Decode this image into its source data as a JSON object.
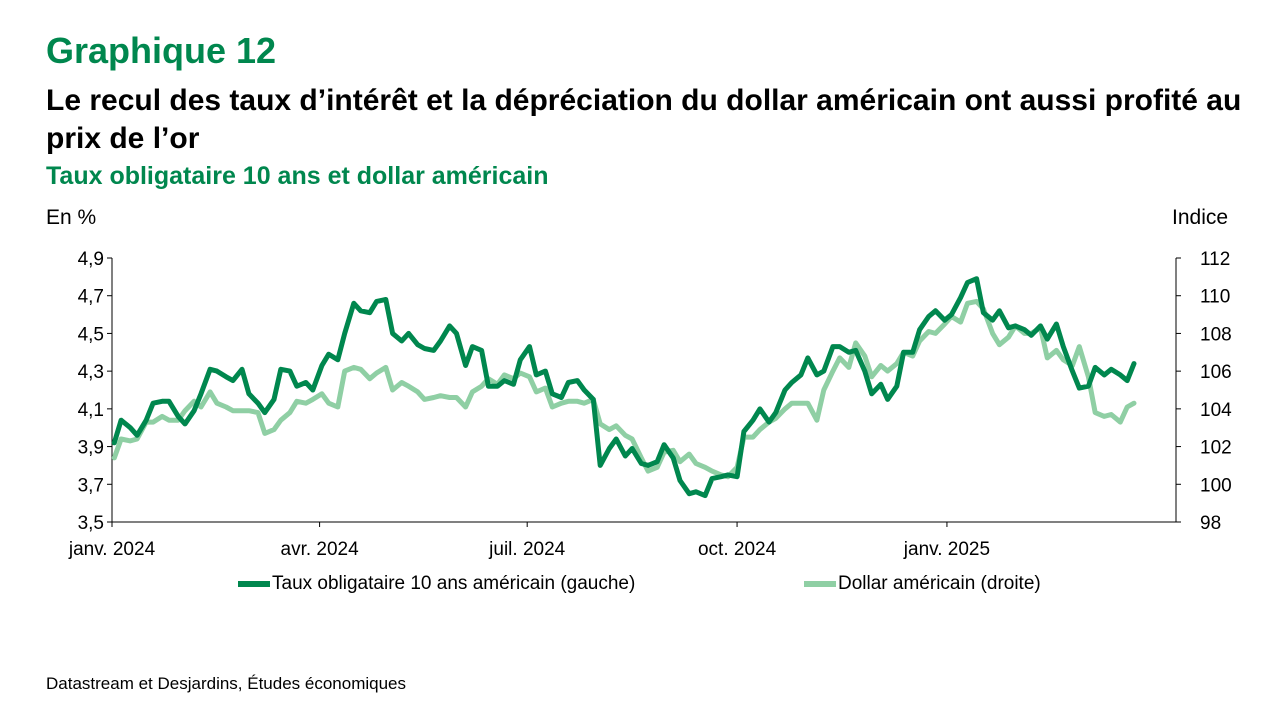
{
  "header": {
    "kicker": "Graphique 12",
    "title": "Le recul des taux d’intérêt et la dépréciation du dollar américain ont aussi profité au prix de l’or",
    "subtitle": "Taux obligataire 10 ans et dollar américain"
  },
  "footer": {
    "source": "Datastream et Desjardins, Études économiques"
  },
  "colors": {
    "accent": "#00874E",
    "series_bond": "#00874E",
    "series_dollar": "#8FCFA4"
  },
  "chart_data": {
    "type": "line",
    "title": "Taux obligataire 10 ans et dollar américain",
    "y_left": {
      "label": "En %",
      "range": [
        3.5,
        4.9
      ],
      "ticks": [
        "4,9",
        "4,7",
        "4,5",
        "4,3",
        "4,1",
        "3,9",
        "3,7",
        "3,5"
      ],
      "tick_values": [
        4.9,
        4.7,
        4.5,
        4.3,
        4.1,
        3.9,
        3.7,
        3.5
      ]
    },
    "y_right": {
      "label": "Indice",
      "range": [
        98,
        112
      ],
      "ticks": [
        "112",
        "110",
        "108",
        "106",
        "104",
        "102",
        "100",
        "98"
      ],
      "tick_values": [
        112,
        110,
        108,
        106,
        104,
        102,
        100,
        98
      ]
    },
    "x_axis": {
      "range": [
        "2024-01-01",
        "2025-03-24"
      ],
      "ticks": [
        {
          "date": "2024-01-01",
          "label": "janv. 2024"
        },
        {
          "date": "2024-04-01",
          "label": "avr. 2024"
        },
        {
          "date": "2024-07-01",
          "label": "juil. 2024"
        },
        {
          "date": "2024-10-01",
          "label": "oct. 2024"
        },
        {
          "date": "2025-01-01",
          "label": "janv. 2025"
        }
      ]
    },
    "grid": false,
    "legend_position": "bottom",
    "series": [
      {
        "name": "Taux obligataire 10 ans américain (gauche)",
        "axis": "left",
        "points": [
          [
            "2024-01-02",
            3.92
          ],
          [
            "2024-01-05",
            4.04
          ],
          [
            "2024-01-09",
            4.0
          ],
          [
            "2024-01-12",
            3.96
          ],
          [
            "2024-01-16",
            4.04
          ],
          [
            "2024-01-19",
            4.13
          ],
          [
            "2024-01-23",
            4.14
          ],
          [
            "2024-01-26",
            4.14
          ],
          [
            "2024-01-30",
            4.06
          ],
          [
            "2024-02-02",
            4.02
          ],
          [
            "2024-02-06",
            4.09
          ],
          [
            "2024-02-09",
            4.18
          ],
          [
            "2024-02-13",
            4.31
          ],
          [
            "2024-02-16",
            4.3
          ],
          [
            "2024-02-20",
            4.27
          ],
          [
            "2024-02-23",
            4.25
          ],
          [
            "2024-02-27",
            4.31
          ],
          [
            "2024-03-01",
            4.18
          ],
          [
            "2024-03-05",
            4.13
          ],
          [
            "2024-03-08",
            4.08
          ],
          [
            "2024-03-12",
            4.15
          ],
          [
            "2024-03-15",
            4.31
          ],
          [
            "2024-03-19",
            4.3
          ],
          [
            "2024-03-22",
            4.22
          ],
          [
            "2024-03-26",
            4.24
          ],
          [
            "2024-03-29",
            4.2
          ],
          [
            "2024-04-02",
            4.33
          ],
          [
            "2024-04-05",
            4.39
          ],
          [
            "2024-04-09",
            4.36
          ],
          [
            "2024-04-12",
            4.5
          ],
          [
            "2024-04-16",
            4.66
          ],
          [
            "2024-04-19",
            4.62
          ],
          [
            "2024-04-23",
            4.61
          ],
          [
            "2024-04-26",
            4.67
          ],
          [
            "2024-04-30",
            4.68
          ],
          [
            "2024-05-03",
            4.5
          ],
          [
            "2024-05-07",
            4.46
          ],
          [
            "2024-05-10",
            4.5
          ],
          [
            "2024-05-14",
            4.44
          ],
          [
            "2024-05-17",
            4.42
          ],
          [
            "2024-05-21",
            4.41
          ],
          [
            "2024-05-24",
            4.46
          ],
          [
            "2024-05-28",
            4.54
          ],
          [
            "2024-05-31",
            4.5
          ],
          [
            "2024-06-04",
            4.33
          ],
          [
            "2024-06-07",
            4.43
          ],
          [
            "2024-06-11",
            4.41
          ],
          [
            "2024-06-14",
            4.22
          ],
          [
            "2024-06-18",
            4.22
          ],
          [
            "2024-06-21",
            4.25
          ],
          [
            "2024-06-25",
            4.23
          ],
          [
            "2024-06-28",
            4.36
          ],
          [
            "2024-07-02",
            4.43
          ],
          [
            "2024-07-05",
            4.28
          ],
          [
            "2024-07-09",
            4.3
          ],
          [
            "2024-07-12",
            4.18
          ],
          [
            "2024-07-16",
            4.16
          ],
          [
            "2024-07-19",
            4.24
          ],
          [
            "2024-07-23",
            4.25
          ],
          [
            "2024-07-26",
            4.2
          ],
          [
            "2024-07-30",
            4.15
          ],
          [
            "2024-08-02",
            3.8
          ],
          [
            "2024-08-06",
            3.89
          ],
          [
            "2024-08-09",
            3.94
          ],
          [
            "2024-08-13",
            3.85
          ],
          [
            "2024-08-16",
            3.89
          ],
          [
            "2024-08-20",
            3.81
          ],
          [
            "2024-08-23",
            3.8
          ],
          [
            "2024-08-27",
            3.82
          ],
          [
            "2024-08-30",
            3.91
          ],
          [
            "2024-09-03",
            3.84
          ],
          [
            "2024-09-06",
            3.72
          ],
          [
            "2024-09-10",
            3.65
          ],
          [
            "2024-09-13",
            3.66
          ],
          [
            "2024-09-17",
            3.64
          ],
          [
            "2024-09-20",
            3.73
          ],
          [
            "2024-09-24",
            3.74
          ],
          [
            "2024-09-27",
            3.75
          ],
          [
            "2024-10-01",
            3.74
          ],
          [
            "2024-10-04",
            3.98
          ],
          [
            "2024-10-08",
            4.04
          ],
          [
            "2024-10-11",
            4.1
          ],
          [
            "2024-10-15",
            4.03
          ],
          [
            "2024-10-18",
            4.08
          ],
          [
            "2024-10-22",
            4.2
          ],
          [
            "2024-10-25",
            4.24
          ],
          [
            "2024-10-29",
            4.28
          ],
          [
            "2024-11-01",
            4.37
          ],
          [
            "2024-11-05",
            4.28
          ],
          [
            "2024-11-08",
            4.3
          ],
          [
            "2024-11-12",
            4.43
          ],
          [
            "2024-11-15",
            4.43
          ],
          [
            "2024-11-19",
            4.4
          ],
          [
            "2024-11-22",
            4.41
          ],
          [
            "2024-11-26",
            4.3
          ],
          [
            "2024-11-29",
            4.18
          ],
          [
            "2024-12-03",
            4.23
          ],
          [
            "2024-12-06",
            4.15
          ],
          [
            "2024-12-10",
            4.22
          ],
          [
            "2024-12-13",
            4.4
          ],
          [
            "2024-12-17",
            4.4
          ],
          [
            "2024-12-20",
            4.52
          ],
          [
            "2024-12-24",
            4.59
          ],
          [
            "2024-12-27",
            4.62
          ],
          [
            "2024-12-31",
            4.57
          ],
          [
            "2025-01-03",
            4.6
          ],
          [
            "2025-01-07",
            4.69
          ],
          [
            "2025-01-10",
            4.77
          ],
          [
            "2025-01-14",
            4.79
          ],
          [
            "2025-01-17",
            4.61
          ],
          [
            "2025-01-21",
            4.57
          ],
          [
            "2025-01-24",
            4.62
          ],
          [
            "2025-01-28",
            4.53
          ],
          [
            "2025-01-31",
            4.54
          ],
          [
            "2025-02-04",
            4.52
          ],
          [
            "2025-02-07",
            4.49
          ],
          [
            "2025-02-11",
            4.54
          ],
          [
            "2025-02-14",
            4.47
          ],
          [
            "2025-02-18",
            4.55
          ],
          [
            "2025-02-21",
            4.43
          ],
          [
            "2025-02-25",
            4.3
          ],
          [
            "2025-02-28",
            4.21
          ],
          [
            "2025-03-04",
            4.22
          ],
          [
            "2025-03-07",
            4.32
          ],
          [
            "2025-03-11",
            4.28
          ],
          [
            "2025-03-14",
            4.31
          ],
          [
            "2025-03-18",
            4.28
          ],
          [
            "2025-03-21",
            4.25
          ],
          [
            "2025-03-24",
            4.34
          ]
        ]
      },
      {
        "name": "Dollar américain (droite)",
        "axis": "right",
        "points": [
          [
            "2024-01-02",
            101.4
          ],
          [
            "2024-01-05",
            102.4
          ],
          [
            "2024-01-09",
            102.3
          ],
          [
            "2024-01-12",
            102.4
          ],
          [
            "2024-01-16",
            103.3
          ],
          [
            "2024-01-19",
            103.3
          ],
          [
            "2024-01-23",
            103.6
          ],
          [
            "2024-01-26",
            103.4
          ],
          [
            "2024-01-30",
            103.4
          ],
          [
            "2024-02-02",
            103.9
          ],
          [
            "2024-02-06",
            104.4
          ],
          [
            "2024-02-09",
            104.1
          ],
          [
            "2024-02-13",
            104.9
          ],
          [
            "2024-02-16",
            104.3
          ],
          [
            "2024-02-20",
            104.1
          ],
          [
            "2024-02-23",
            103.9
          ],
          [
            "2024-02-27",
            103.9
          ],
          [
            "2024-03-01",
            103.9
          ],
          [
            "2024-03-05",
            103.8
          ],
          [
            "2024-03-08",
            102.7
          ],
          [
            "2024-03-12",
            102.9
          ],
          [
            "2024-03-15",
            103.4
          ],
          [
            "2024-03-19",
            103.8
          ],
          [
            "2024-03-22",
            104.4
          ],
          [
            "2024-03-26",
            104.3
          ],
          [
            "2024-03-29",
            104.5
          ],
          [
            "2024-04-02",
            104.8
          ],
          [
            "2024-04-05",
            104.3
          ],
          [
            "2024-04-09",
            104.1
          ],
          [
            "2024-04-12",
            106.0
          ],
          [
            "2024-04-16",
            106.2
          ],
          [
            "2024-04-19",
            106.1
          ],
          [
            "2024-04-23",
            105.6
          ],
          [
            "2024-04-26",
            105.9
          ],
          [
            "2024-04-30",
            106.2
          ],
          [
            "2024-05-03",
            105.0
          ],
          [
            "2024-05-07",
            105.4
          ],
          [
            "2024-05-10",
            105.2
          ],
          [
            "2024-05-14",
            104.9
          ],
          [
            "2024-05-17",
            104.5
          ],
          [
            "2024-05-21",
            104.6
          ],
          [
            "2024-05-24",
            104.7
          ],
          [
            "2024-05-28",
            104.6
          ],
          [
            "2024-05-31",
            104.6
          ],
          [
            "2024-06-04",
            104.1
          ],
          [
            "2024-06-07",
            104.9
          ],
          [
            "2024-06-11",
            105.2
          ],
          [
            "2024-06-14",
            105.6
          ],
          [
            "2024-06-18",
            105.3
          ],
          [
            "2024-06-21",
            105.8
          ],
          [
            "2024-06-25",
            105.6
          ],
          [
            "2024-06-28",
            105.9
          ],
          [
            "2024-07-02",
            105.7
          ],
          [
            "2024-07-05",
            104.9
          ],
          [
            "2024-07-09",
            105.1
          ],
          [
            "2024-07-12",
            104.1
          ],
          [
            "2024-07-16",
            104.3
          ],
          [
            "2024-07-19",
            104.4
          ],
          [
            "2024-07-23",
            104.4
          ],
          [
            "2024-07-26",
            104.3
          ],
          [
            "2024-07-30",
            104.5
          ],
          [
            "2024-08-02",
            103.2
          ],
          [
            "2024-08-06",
            102.9
          ],
          [
            "2024-08-09",
            103.1
          ],
          [
            "2024-08-13",
            102.6
          ],
          [
            "2024-08-16",
            102.4
          ],
          [
            "2024-08-20",
            101.4
          ],
          [
            "2024-08-23",
            100.7
          ],
          [
            "2024-08-27",
            100.9
          ],
          [
            "2024-08-30",
            101.7
          ],
          [
            "2024-09-03",
            101.8
          ],
          [
            "2024-09-06",
            101.2
          ],
          [
            "2024-09-10",
            101.6
          ],
          [
            "2024-09-13",
            101.1
          ],
          [
            "2024-09-17",
            100.9
          ],
          [
            "2024-09-20",
            100.7
          ],
          [
            "2024-09-24",
            100.5
          ],
          [
            "2024-09-27",
            100.4
          ],
          [
            "2024-10-01",
            100.9
          ],
          [
            "2024-10-04",
            102.5
          ],
          [
            "2024-10-08",
            102.5
          ],
          [
            "2024-10-11",
            102.9
          ],
          [
            "2024-10-15",
            103.3
          ],
          [
            "2024-10-18",
            103.5
          ],
          [
            "2024-10-22",
            104.0
          ],
          [
            "2024-10-25",
            104.3
          ],
          [
            "2024-10-29",
            104.3
          ],
          [
            "2024-11-01",
            104.3
          ],
          [
            "2024-11-05",
            103.4
          ],
          [
            "2024-11-08",
            105.0
          ],
          [
            "2024-11-12",
            106.0
          ],
          [
            "2024-11-15",
            106.7
          ],
          [
            "2024-11-19",
            106.2
          ],
          [
            "2024-11-22",
            107.5
          ],
          [
            "2024-11-26",
            106.8
          ],
          [
            "2024-11-29",
            105.7
          ],
          [
            "2024-12-03",
            106.3
          ],
          [
            "2024-12-06",
            106.0
          ],
          [
            "2024-12-10",
            106.4
          ],
          [
            "2024-12-13",
            107.0
          ],
          [
            "2024-12-17",
            106.8
          ],
          [
            "2024-12-20",
            107.6
          ],
          [
            "2024-12-24",
            108.1
          ],
          [
            "2024-12-27",
            108.0
          ],
          [
            "2024-12-31",
            108.5
          ],
          [
            "2025-01-03",
            108.9
          ],
          [
            "2025-01-07",
            108.6
          ],
          [
            "2025-01-10",
            109.6
          ],
          [
            "2025-01-14",
            109.7
          ],
          [
            "2025-01-17",
            109.3
          ],
          [
            "2025-01-21",
            108.0
          ],
          [
            "2025-01-24",
            107.4
          ],
          [
            "2025-01-28",
            107.8
          ],
          [
            "2025-01-31",
            108.4
          ],
          [
            "2025-02-04",
            108.0
          ],
          [
            "2025-02-07",
            108.0
          ],
          [
            "2025-02-11",
            108.3
          ],
          [
            "2025-02-14",
            106.7
          ],
          [
            "2025-02-18",
            107.1
          ],
          [
            "2025-02-21",
            106.6
          ],
          [
            "2025-02-25",
            106.3
          ],
          [
            "2025-02-28",
            107.3
          ],
          [
            "2025-03-04",
            105.7
          ],
          [
            "2025-03-07",
            103.8
          ],
          [
            "2025-03-11",
            103.6
          ],
          [
            "2025-03-14",
            103.7
          ],
          [
            "2025-03-18",
            103.3
          ],
          [
            "2025-03-21",
            104.1
          ],
          [
            "2025-03-24",
            104.3
          ]
        ]
      }
    ]
  }
}
